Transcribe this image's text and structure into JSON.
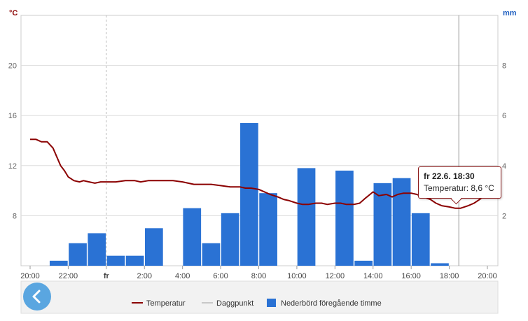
{
  "chart_data": {
    "type": "bar+line",
    "left_axis": {
      "unit": "°C",
      "ticks": [
        8,
        12,
        16,
        20
      ],
      "range": [
        4,
        24
      ],
      "color": "#8b0000"
    },
    "right_axis": {
      "unit": "mm",
      "ticks": [
        2,
        4,
        6,
        8
      ],
      "range": [
        0,
        10
      ],
      "color": "#1f5fc0"
    },
    "x_axis": {
      "range_hours": [
        0,
        24
      ],
      "ticks": [
        {
          "h": 0,
          "label": "20:00"
        },
        {
          "h": 2,
          "label": "22:00"
        },
        {
          "h": 4,
          "label": "fr",
          "sub": "22.6."
        },
        {
          "h": 6,
          "label": "2:00"
        },
        {
          "h": 8,
          "label": "4:00"
        },
        {
          "h": 10,
          "label": "6:00"
        },
        {
          "h": 12,
          "label": "8:00"
        },
        {
          "h": 14,
          "label": "10:00"
        },
        {
          "h": 16,
          "label": "12:00"
        },
        {
          "h": 18,
          "label": "14:00"
        },
        {
          "h": 20,
          "label": "16:00"
        },
        {
          "h": 22,
          "label": "18:00"
        },
        {
          "h": 24,
          "label": "20:00"
        }
      ],
      "day_marker_h": 4,
      "cursor_h": 22.5
    },
    "series": [
      {
        "name": "Nederbörd föregående timme",
        "kind": "bar",
        "axis": "right",
        "color": "#2a72d4",
        "x_hours": [
          0.5,
          1.5,
          2.5,
          3.5,
          4.5,
          5.5,
          6.5,
          7.5,
          8.5,
          9.5,
          10.5,
          11.5,
          12.5,
          13.5,
          14.5,
          15.5,
          16.5,
          17.5,
          18.5,
          19.5,
          20.5,
          21.5,
          22.5,
          23.5
        ],
        "values": [
          0,
          0.2,
          0.9,
          1.3,
          0.4,
          0.4,
          1.5,
          0,
          2.3,
          0.9,
          2.1,
          5.7,
          2.9,
          0,
          3.9,
          0,
          3.8,
          0.2,
          3.3,
          3.5,
          2.1,
          0.1,
          0,
          0
        ]
      },
      {
        "name": "Temperatur",
        "kind": "line",
        "axis": "left",
        "color": "#8b0000",
        "x_hours": [
          0,
          0.3,
          0.6,
          0.9,
          1.2,
          1.6,
          1.8,
          2,
          2.3,
          2.6,
          2.8,
          3.1,
          3.4,
          3.7,
          4,
          4.5,
          5,
          5.5,
          5.8,
          6.2,
          6.6,
          7,
          7.5,
          8,
          8.3,
          8.6,
          9,
          9.5,
          10,
          10.5,
          11,
          11.3,
          11.6,
          12,
          12.3,
          12.6,
          13,
          13.3,
          13.6,
          14,
          14.3,
          14.6,
          15,
          15.3,
          15.6,
          16,
          16.3,
          16.6,
          17,
          17.3,
          17.6,
          18,
          18.3,
          18.7,
          19,
          19.3,
          19.6,
          20,
          20.3,
          20.6,
          21,
          21.3,
          21.6,
          22,
          22.3,
          22.6,
          23,
          23.3,
          23.6,
          24
        ],
        "values": [
          14.1,
          14.1,
          13.9,
          13.9,
          13.4,
          12.0,
          11.6,
          11.1,
          10.8,
          10.7,
          10.8,
          10.7,
          10.6,
          10.7,
          10.7,
          10.7,
          10.8,
          10.8,
          10.7,
          10.8,
          10.8,
          10.8,
          10.8,
          10.7,
          10.6,
          10.5,
          10.5,
          10.5,
          10.4,
          10.3,
          10.3,
          10.2,
          10.2,
          10.1,
          9.9,
          9.7,
          9.5,
          9.3,
          9.2,
          9.0,
          8.9,
          8.9,
          9.0,
          9.0,
          8.9,
          9.0,
          9.0,
          8.9,
          8.9,
          9.0,
          9.4,
          9.9,
          9.6,
          9.7,
          9.5,
          9.7,
          9.8,
          9.8,
          9.7,
          9.5,
          9.3,
          9.0,
          8.8,
          8.7,
          8.6,
          8.6,
          8.8,
          9.0,
          9.3,
          9.8
        ]
      },
      {
        "name": "Daggpunkt",
        "kind": "line",
        "axis": "left",
        "color": "#c8c8c8",
        "inactive": true
      }
    ]
  },
  "legend": [
    {
      "label": "Temperatur",
      "color": "#8b0000",
      "shape": "line"
    },
    {
      "label": "Daggpunkt",
      "color": "#c8c8c8",
      "shape": "line"
    },
    {
      "label": "Nederbörd föregående timme",
      "color": "#2a72d4",
      "shape": "box"
    }
  ],
  "tooltip": {
    "title": "fr 22.6. 18:30",
    "text": "Temperatur: 8,6 °C"
  },
  "back_icon": "chevron-left-icon"
}
